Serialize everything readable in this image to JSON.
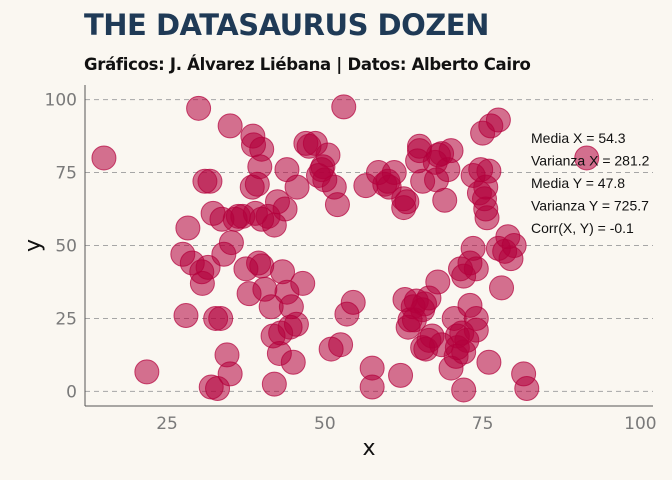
{
  "header": {
    "title": "THE DATASAURUS DOZEN",
    "subtitle": "Gráficos: J. Álvarez Liébana | Datos: Alberto Cairo"
  },
  "chart_data": {
    "type": "scatter",
    "title": "THE DATASAURUS DOZEN",
    "subtitle": "Gráficos: J. Álvarez Liébana | Datos: Alberto Cairo",
    "xlabel": "x",
    "ylabel": "y",
    "xlim": [
      12,
      102
    ],
    "ylim": [
      -5,
      105
    ],
    "xticks": [
      25,
      50,
      75,
      100
    ],
    "yticks": [
      0,
      25,
      50,
      75,
      100
    ],
    "grid": "horizontal-dashed",
    "point_color": "#b3003c",
    "annotations": [
      "Media X = 54.3",
      "Varianza X = 281.2",
      "Media Y = 47.8",
      "Varianza Y = 725.7",
      "Corr(X, Y) = -0.1"
    ],
    "points": [
      [
        15.0,
        80.0
      ],
      [
        21.8,
        6.7
      ],
      [
        28.0,
        26.0
      ],
      [
        27.5,
        47.0
      ],
      [
        28.3,
        56.0
      ],
      [
        29.0,
        44.0
      ],
      [
        30.0,
        97.0
      ],
      [
        30.5,
        41.0
      ],
      [
        30.6,
        37.0
      ],
      [
        31.0,
        72.0
      ],
      [
        31.5,
        42.5
      ],
      [
        31.8,
        72.0
      ],
      [
        32.0,
        1.5
      ],
      [
        32.3,
        61.0
      ],
      [
        32.7,
        25.0
      ],
      [
        33.0,
        1.0
      ],
      [
        33.5,
        25.0
      ],
      [
        33.7,
        59.0
      ],
      [
        34.0,
        47.0
      ],
      [
        34.5,
        12.5
      ],
      [
        35.0,
        91.0
      ],
      [
        35.0,
        6.0
      ],
      [
        35.2,
        51.0
      ],
      [
        35.8,
        59.0
      ],
      [
        36.3,
        60.0
      ],
      [
        37.0,
        60.0
      ],
      [
        37.5,
        42.0
      ],
      [
        38.0,
        33.5
      ],
      [
        38.5,
        70.0
      ],
      [
        38.6,
        87.5
      ],
      [
        38.7,
        84.5
      ],
      [
        39.0,
        61.0
      ],
      [
        39.3,
        71.0
      ],
      [
        39.5,
        44.0
      ],
      [
        39.7,
        77.0
      ],
      [
        40.0,
        43.0
      ],
      [
        40.0,
        83.0
      ],
      [
        40.0,
        59.0
      ],
      [
        40.5,
        35.0
      ],
      [
        41.0,
        60.0
      ],
      [
        41.5,
        29.0
      ],
      [
        41.8,
        19.0
      ],
      [
        42.0,
        2.5
      ],
      [
        42.0,
        57.0
      ],
      [
        42.5,
        65.0
      ],
      [
        42.8,
        13.0
      ],
      [
        43.0,
        20.0
      ],
      [
        43.3,
        41.0
      ],
      [
        43.7,
        62.5
      ],
      [
        44.0,
        76.0
      ],
      [
        44.0,
        34.0
      ],
      [
        44.5,
        22.0
      ],
      [
        44.7,
        29.0
      ],
      [
        45.0,
        10.0
      ],
      [
        45.5,
        23.0
      ],
      [
        45.6,
        70.0
      ],
      [
        46.5,
        37.0
      ],
      [
        47.0,
        85.0
      ],
      [
        47.5,
        84.0
      ],
      [
        48.5,
        85.0
      ],
      [
        49.0,
        74.0
      ],
      [
        49.5,
        76.0
      ],
      [
        49.7,
        77.0
      ],
      [
        50.0,
        72.5
      ],
      [
        50.5,
        81.0
      ],
      [
        51.0,
        14.5
      ],
      [
        51.5,
        70.0
      ],
      [
        52.0,
        64.0
      ],
      [
        52.5,
        16.0
      ],
      [
        53.0,
        97.5
      ],
      [
        53.5,
        26.5
      ],
      [
        54.5,
        30.5
      ],
      [
        56.5,
        70.5
      ],
      [
        57.5,
        8.0
      ],
      [
        57.5,
        1.5
      ],
      [
        58.5,
        75.0
      ],
      [
        59.5,
        71.0
      ],
      [
        60.0,
        72.0
      ],
      [
        60.2,
        70.0
      ],
      [
        61.0,
        75.0
      ],
      [
        62.0,
        5.5
      ],
      [
        62.5,
        66.0
      ],
      [
        62.5,
        63.0
      ],
      [
        62.7,
        31.5
      ],
      [
        63.0,
        65.0
      ],
      [
        63.2,
        22.0
      ],
      [
        63.5,
        24.5
      ],
      [
        64.0,
        29.0
      ],
      [
        64.2,
        24.5
      ],
      [
        64.5,
        31.0
      ],
      [
        64.7,
        79.0
      ],
      [
        65.0,
        84.0
      ],
      [
        65.0,
        82.5
      ],
      [
        65.5,
        28.0
      ],
      [
        65.5,
        15.0
      ],
      [
        65.5,
        72.0
      ],
      [
        65.8,
        30.0
      ],
      [
        66.0,
        14.5
      ],
      [
        66.5,
        17.5
      ],
      [
        66.5,
        32.0
      ],
      [
        67.0,
        19.0
      ],
      [
        67.5,
        78.5
      ],
      [
        67.7,
        72.5
      ],
      [
        67.9,
        37.5
      ],
      [
        68.0,
        81.0
      ],
      [
        68.5,
        16.0
      ],
      [
        68.5,
        81.5
      ],
      [
        69.0,
        65.5
      ],
      [
        69.5,
        76.0
      ],
      [
        70.0,
        82.5
      ],
      [
        70.0,
        8.0
      ],
      [
        70.5,
        25.0
      ],
      [
        70.8,
        12.0
      ],
      [
        71.0,
        15.0
      ],
      [
        71.0,
        19.0
      ],
      [
        71.5,
        42.0
      ],
      [
        71.7,
        20.0
      ],
      [
        72.0,
        0.5
      ],
      [
        72.0,
        13.5
      ],
      [
        72.0,
        39.5
      ],
      [
        72.5,
        17.5
      ],
      [
        73.0,
        29.5
      ],
      [
        73.0,
        44.0
      ],
      [
        73.5,
        74.0
      ],
      [
        73.5,
        49.0
      ],
      [
        74.0,
        25.0
      ],
      [
        74.0,
        21.0
      ],
      [
        74.0,
        42.0
      ],
      [
        74.5,
        68.0
      ],
      [
        74.7,
        76.0
      ],
      [
        75.0,
        88.5
      ],
      [
        75.3,
        66.0
      ],
      [
        75.5,
        62.5
      ],
      [
        75.5,
        70.0
      ],
      [
        75.7,
        59.5
      ],
      [
        76.0,
        75.5
      ],
      [
        76.0,
        10.0
      ],
      [
        76.3,
        91.0
      ],
      [
        77.5,
        93.0
      ],
      [
        77.5,
        49.0
      ],
      [
        78.0,
        35.5
      ],
      [
        78.5,
        48.0
      ],
      [
        79.0,
        53.0
      ],
      [
        79.5,
        45.5
      ],
      [
        80.0,
        50.0
      ],
      [
        81.5,
        6.0
      ],
      [
        82.0,
        1.0
      ],
      [
        91.5,
        80.0
      ]
    ]
  }
}
